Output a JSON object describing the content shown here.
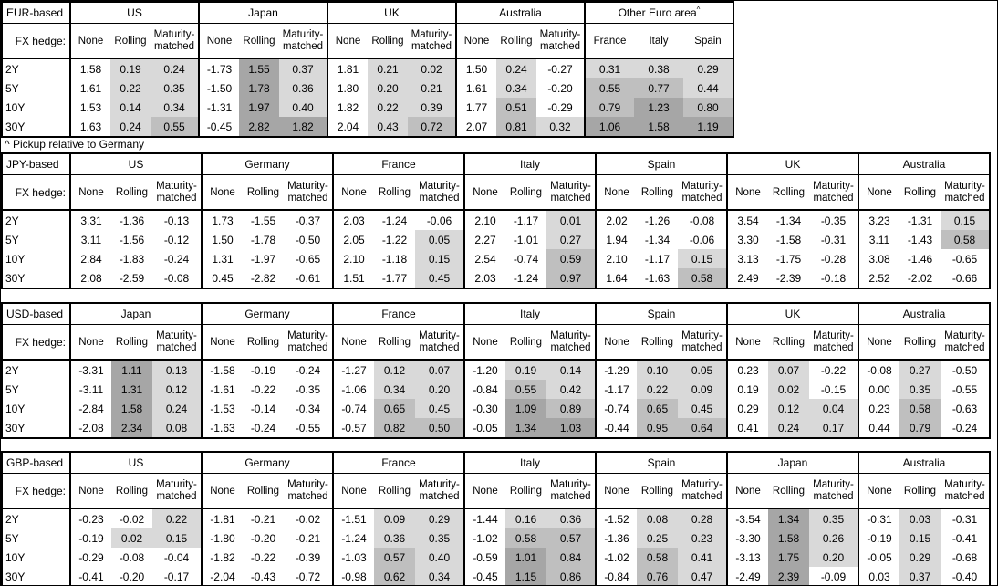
{
  "note": "^ Pickup relative to Germany",
  "labels": {
    "fx_hedge": "FX hedge:",
    "none": "None",
    "rolling": "Rolling",
    "maturity_matched": "Maturity-matched",
    "tenors": [
      "2Y",
      "5Y",
      "10Y",
      "30Y"
    ]
  },
  "colors": {
    "shade_low": "#d9d9d9",
    "shade_mid": "#bfbfbf",
    "shade_high": "#a6a6a6",
    "border": "#000000",
    "background": "#ffffff"
  },
  "shading_rule": "None/raw-yield columns unshaded; pickup values shaded: 0 to 0.5 light, 0.5 to 1.0 medium, 1.0+ dark, negatives unshaded",
  "tables": [
    {
      "base": "EUR-based",
      "groups": [
        {
          "name": "US",
          "type": "hedge",
          "rows": [
            [
              "1.58",
              "0.19",
              "0.24"
            ],
            [
              "1.61",
              "0.22",
              "0.35"
            ],
            [
              "1.53",
              "0.14",
              "0.34"
            ],
            [
              "1.63",
              "0.24",
              "0.55"
            ]
          ]
        },
        {
          "name": "Japan",
          "type": "hedge",
          "rows": [
            [
              "-1.73",
              "1.55",
              "0.37"
            ],
            [
              "-1.50",
              "1.78",
              "0.36"
            ],
            [
              "-1.31",
              "1.97",
              "0.40"
            ],
            [
              "-0.45",
              "2.82",
              "1.82"
            ]
          ]
        },
        {
          "name": "UK",
          "type": "hedge",
          "rows": [
            [
              "1.81",
              "0.21",
              "0.02"
            ],
            [
              "1.80",
              "0.20",
              "0.21"
            ],
            [
              "1.82",
              "0.22",
              "0.39"
            ],
            [
              "2.04",
              "0.43",
              "0.72"
            ]
          ]
        },
        {
          "name": "Australia",
          "type": "hedge",
          "rows": [
            [
              "1.50",
              "0.24",
              "-0.27"
            ],
            [
              "1.61",
              "0.34",
              "-0.20"
            ],
            [
              "1.77",
              "0.51",
              "-0.29"
            ],
            [
              "2.07",
              "0.81",
              "0.32"
            ]
          ]
        },
        {
          "name": "Other Euro area",
          "sup": "^",
          "type": "country",
          "cols": [
            "France",
            "Italy",
            "Spain"
          ],
          "rows": [
            [
              "0.31",
              "0.38",
              "0.29"
            ],
            [
              "0.55",
              "0.77",
              "0.44"
            ],
            [
              "0.79",
              "1.23",
              "0.80"
            ],
            [
              "1.06",
              "1.58",
              "1.19"
            ]
          ]
        }
      ]
    },
    {
      "base": "JPY-based",
      "groups": [
        {
          "name": "US",
          "type": "hedge",
          "rows": [
            [
              "3.31",
              "-1.36",
              "-0.13"
            ],
            [
              "3.11",
              "-1.56",
              "-0.12"
            ],
            [
              "2.84",
              "-1.83",
              "-0.24"
            ],
            [
              "2.08",
              "-2.59",
              "-0.08"
            ]
          ]
        },
        {
          "name": "Germany",
          "type": "hedge",
          "rows": [
            [
              "1.73",
              "-1.55",
              "-0.37"
            ],
            [
              "1.50",
              "-1.78",
              "-0.50"
            ],
            [
              "1.31",
              "-1.97",
              "-0.65"
            ],
            [
              "0.45",
              "-2.82",
              "-0.61"
            ]
          ]
        },
        {
          "name": "France",
          "type": "hedge",
          "rows": [
            [
              "2.03",
              "-1.24",
              "-0.06"
            ],
            [
              "2.05",
              "-1.22",
              "0.05"
            ],
            [
              "2.10",
              "-1.18",
              "0.15"
            ],
            [
              "1.51",
              "-1.77",
              "0.45"
            ]
          ]
        },
        {
          "name": "Italy",
          "type": "hedge",
          "rows": [
            [
              "2.10",
              "-1.17",
              "0.01"
            ],
            [
              "2.27",
              "-1.01",
              "0.27"
            ],
            [
              "2.54",
              "-0.74",
              "0.59"
            ],
            [
              "2.03",
              "-1.24",
              "0.97"
            ]
          ]
        },
        {
          "name": "Spain",
          "type": "hedge",
          "rows": [
            [
              "2.02",
              "-1.26",
              "-0.08"
            ],
            [
              "1.94",
              "-1.34",
              "-0.06"
            ],
            [
              "2.10",
              "-1.17",
              "0.15"
            ],
            [
              "1.64",
              "-1.63",
              "0.58"
            ]
          ]
        },
        {
          "name": "UK",
          "type": "hedge",
          "rows": [
            [
              "3.54",
              "-1.34",
              "-0.35"
            ],
            [
              "3.30",
              "-1.58",
              "-0.31"
            ],
            [
              "3.13",
              "-1.75",
              "-0.28"
            ],
            [
              "2.49",
              "-2.39",
              "-0.18"
            ]
          ]
        },
        {
          "name": "Australia",
          "type": "hedge",
          "rows": [
            [
              "3.23",
              "-1.31",
              "0.15"
            ],
            [
              "3.11",
              "-1.43",
              "0.58"
            ],
            [
              "3.08",
              "-1.46",
              "-0.65"
            ],
            [
              "2.52",
              "-2.02",
              "-0.66"
            ]
          ]
        }
      ]
    },
    {
      "base": "USD-based",
      "groups": [
        {
          "name": "Japan",
          "type": "hedge",
          "rows": [
            [
              "-3.31",
              "1.11",
              "0.13"
            ],
            [
              "-3.11",
              "1.31",
              "0.12"
            ],
            [
              "-2.84",
              "1.58",
              "0.24"
            ],
            [
              "-2.08",
              "2.34",
              "0.08"
            ]
          ]
        },
        {
          "name": "Germany",
          "type": "hedge",
          "rows": [
            [
              "-1.58",
              "-0.19",
              "-0.24"
            ],
            [
              "-1.61",
              "-0.22",
              "-0.35"
            ],
            [
              "-1.53",
              "-0.14",
              "-0.34"
            ],
            [
              "-1.63",
              "-0.24",
              "-0.55"
            ]
          ]
        },
        {
          "name": "France",
          "type": "hedge",
          "rows": [
            [
              "-1.27",
              "0.12",
              "0.07"
            ],
            [
              "-1.06",
              "0.34",
              "0.20"
            ],
            [
              "-0.74",
              "0.65",
              "0.45"
            ],
            [
              "-0.57",
              "0.82",
              "0.50"
            ]
          ]
        },
        {
          "name": "Italy",
          "type": "hedge",
          "rows": [
            [
              "-1.20",
              "0.19",
              "0.14"
            ],
            [
              "-0.84",
              "0.55",
              "0.42"
            ],
            [
              "-0.30",
              "1.09",
              "0.89"
            ],
            [
              "-0.05",
              "1.34",
              "1.03"
            ]
          ]
        },
        {
          "name": "Spain",
          "type": "hedge",
          "rows": [
            [
              "-1.29",
              "0.10",
              "0.05"
            ],
            [
              "-1.17",
              "0.22",
              "0.09"
            ],
            [
              "-0.74",
              "0.65",
              "0.45"
            ],
            [
              "-0.44",
              "0.95",
              "0.64"
            ]
          ]
        },
        {
          "name": "UK",
          "type": "hedge",
          "rows": [
            [
              "0.23",
              "0.07",
              "-0.22"
            ],
            [
              "0.19",
              "0.02",
              "-0.15"
            ],
            [
              "0.29",
              "0.12",
              "0.04"
            ],
            [
              "0.41",
              "0.24",
              "0.17"
            ]
          ]
        },
        {
          "name": "Australia",
          "type": "hedge",
          "rows": [
            [
              "-0.08",
              "0.27",
              "-0.50"
            ],
            [
              "0.00",
              "0.35",
              "-0.55"
            ],
            [
              "0.23",
              "0.58",
              "-0.63"
            ],
            [
              "0.44",
              "0.79",
              "-0.24"
            ]
          ]
        }
      ]
    },
    {
      "base": "GBP-based",
      "groups": [
        {
          "name": "US",
          "type": "hedge",
          "rows": [
            [
              "-0.23",
              "-0.02",
              "0.22"
            ],
            [
              "-0.19",
              "0.02",
              "0.15"
            ],
            [
              "-0.29",
              "-0.08",
              "-0.04"
            ],
            [
              "-0.41",
              "-0.20",
              "-0.17"
            ]
          ]
        },
        {
          "name": "Germany",
          "type": "hedge",
          "rows": [
            [
              "-1.81",
              "-0.21",
              "-0.02"
            ],
            [
              "-1.80",
              "-0.20",
              "-0.21"
            ],
            [
              "-1.82",
              "-0.22",
              "-0.39"
            ],
            [
              "-2.04",
              "-0.43",
              "-0.72"
            ]
          ]
        },
        {
          "name": "France",
          "type": "hedge",
          "rows": [
            [
              "-1.51",
              "0.09",
              "0.29"
            ],
            [
              "-1.24",
              "0.36",
              "0.35"
            ],
            [
              "-1.03",
              "0.57",
              "0.40"
            ],
            [
              "-0.98",
              "0.62",
              "0.34"
            ]
          ]
        },
        {
          "name": "Italy",
          "type": "hedge",
          "rows": [
            [
              "-1.44",
              "0.16",
              "0.36"
            ],
            [
              "-1.02",
              "0.58",
              "0.57"
            ],
            [
              "-0.59",
              "1.01",
              "0.84"
            ],
            [
              "-0.45",
              "1.15",
              "0.86"
            ]
          ]
        },
        {
          "name": "Spain",
          "type": "hedge",
          "rows": [
            [
              "-1.52",
              "0.08",
              "0.28"
            ],
            [
              "-1.36",
              "0.25",
              "0.23"
            ],
            [
              "-1.02",
              "0.58",
              "0.41"
            ],
            [
              "-0.84",
              "0.76",
              "0.47"
            ]
          ]
        },
        {
          "name": "Japan",
          "type": "hedge",
          "rows": [
            [
              "-3.54",
              "1.34",
              "0.35"
            ],
            [
              "-3.30",
              "1.58",
              "0.26"
            ],
            [
              "-3.13",
              "1.75",
              "0.20"
            ],
            [
              "-2.49",
              "2.39",
              "-0.09"
            ]
          ]
        },
        {
          "name": "Australia",
          "type": "hedge",
          "rows": [
            [
              "-0.31",
              "0.03",
              "-0.31"
            ],
            [
              "-0.19",
              "0.15",
              "-0.41"
            ],
            [
              "-0.05",
              "0.29",
              "-0.68"
            ],
            [
              "0.03",
              "0.37",
              "-0.40"
            ]
          ]
        }
      ]
    }
  ]
}
